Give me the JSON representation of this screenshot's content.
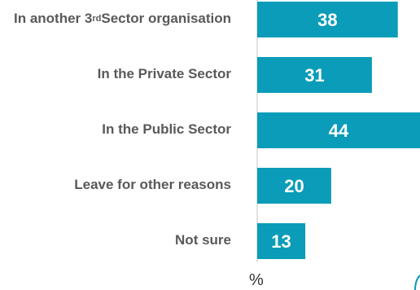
{
  "chart_data": {
    "type": "bar",
    "orientation": "horizontal",
    "categories": [
      {
        "pre": "In another 3",
        "sup": "rd",
        "post": "Sector organisation"
      },
      {
        "pre": "In the Private Sector",
        "sup": "",
        "post": ""
      },
      {
        "pre": "In the Public Sector",
        "sup": "",
        "post": ""
      },
      {
        "pre": "Leave for other reasons",
        "sup": "",
        "post": ""
      },
      {
        "pre": "Not sure",
        "sup": "",
        "post": ""
      }
    ],
    "values": [
      38,
      31,
      44,
      20,
      13
    ],
    "value_labels": [
      "38",
      "31",
      "44",
      "20",
      "13"
    ],
    "xlabel": "%",
    "xlim": [
      0,
      44
    ],
    "bar_color": "#0a9cb8",
    "label_color": "#595959",
    "value_label_color": "#ffffff",
    "grid": false
  }
}
